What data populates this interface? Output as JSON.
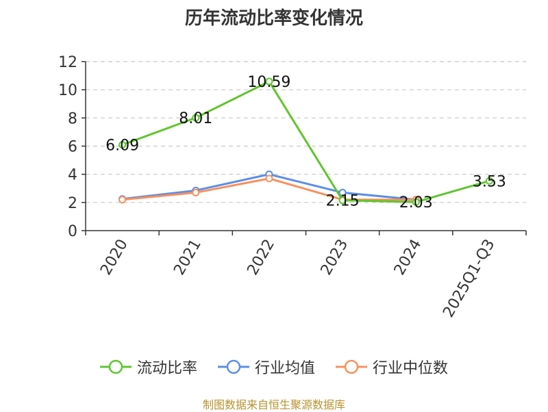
{
  "chart_data": {
    "type": "line",
    "title": "历年流动比率变化情况",
    "categories": [
      "2020",
      "2021",
      "2022",
      "2023",
      "2024",
      "2025Q1-Q3"
    ],
    "ylim": [
      0,
      12
    ],
    "yticks": [
      "0",
      "2",
      "4",
      "6",
      "8",
      "10",
      "12"
    ],
    "grid": true,
    "legend_position": "bottom",
    "series": [
      {
        "name": "流动比率",
        "color": "#5ec62c",
        "values": [
          6.09,
          8.01,
          10.59,
          2.15,
          2.03,
          3.53
        ],
        "labels": [
          "6.09",
          "8.01",
          "10.59",
          "2.15",
          "2.03",
          "3.53"
        ]
      },
      {
        "name": "行业均值",
        "color": "#5b8ee6",
        "values": [
          2.25,
          2.85,
          4.0,
          2.7,
          2.2,
          null
        ]
      },
      {
        "name": "行业中位数",
        "color": "#f7905c",
        "values": [
          2.2,
          2.7,
          3.7,
          2.2,
          2.2,
          null
        ]
      }
    ]
  },
  "footer": {
    "source": "制图数据来自恒生聚源数据库"
  }
}
